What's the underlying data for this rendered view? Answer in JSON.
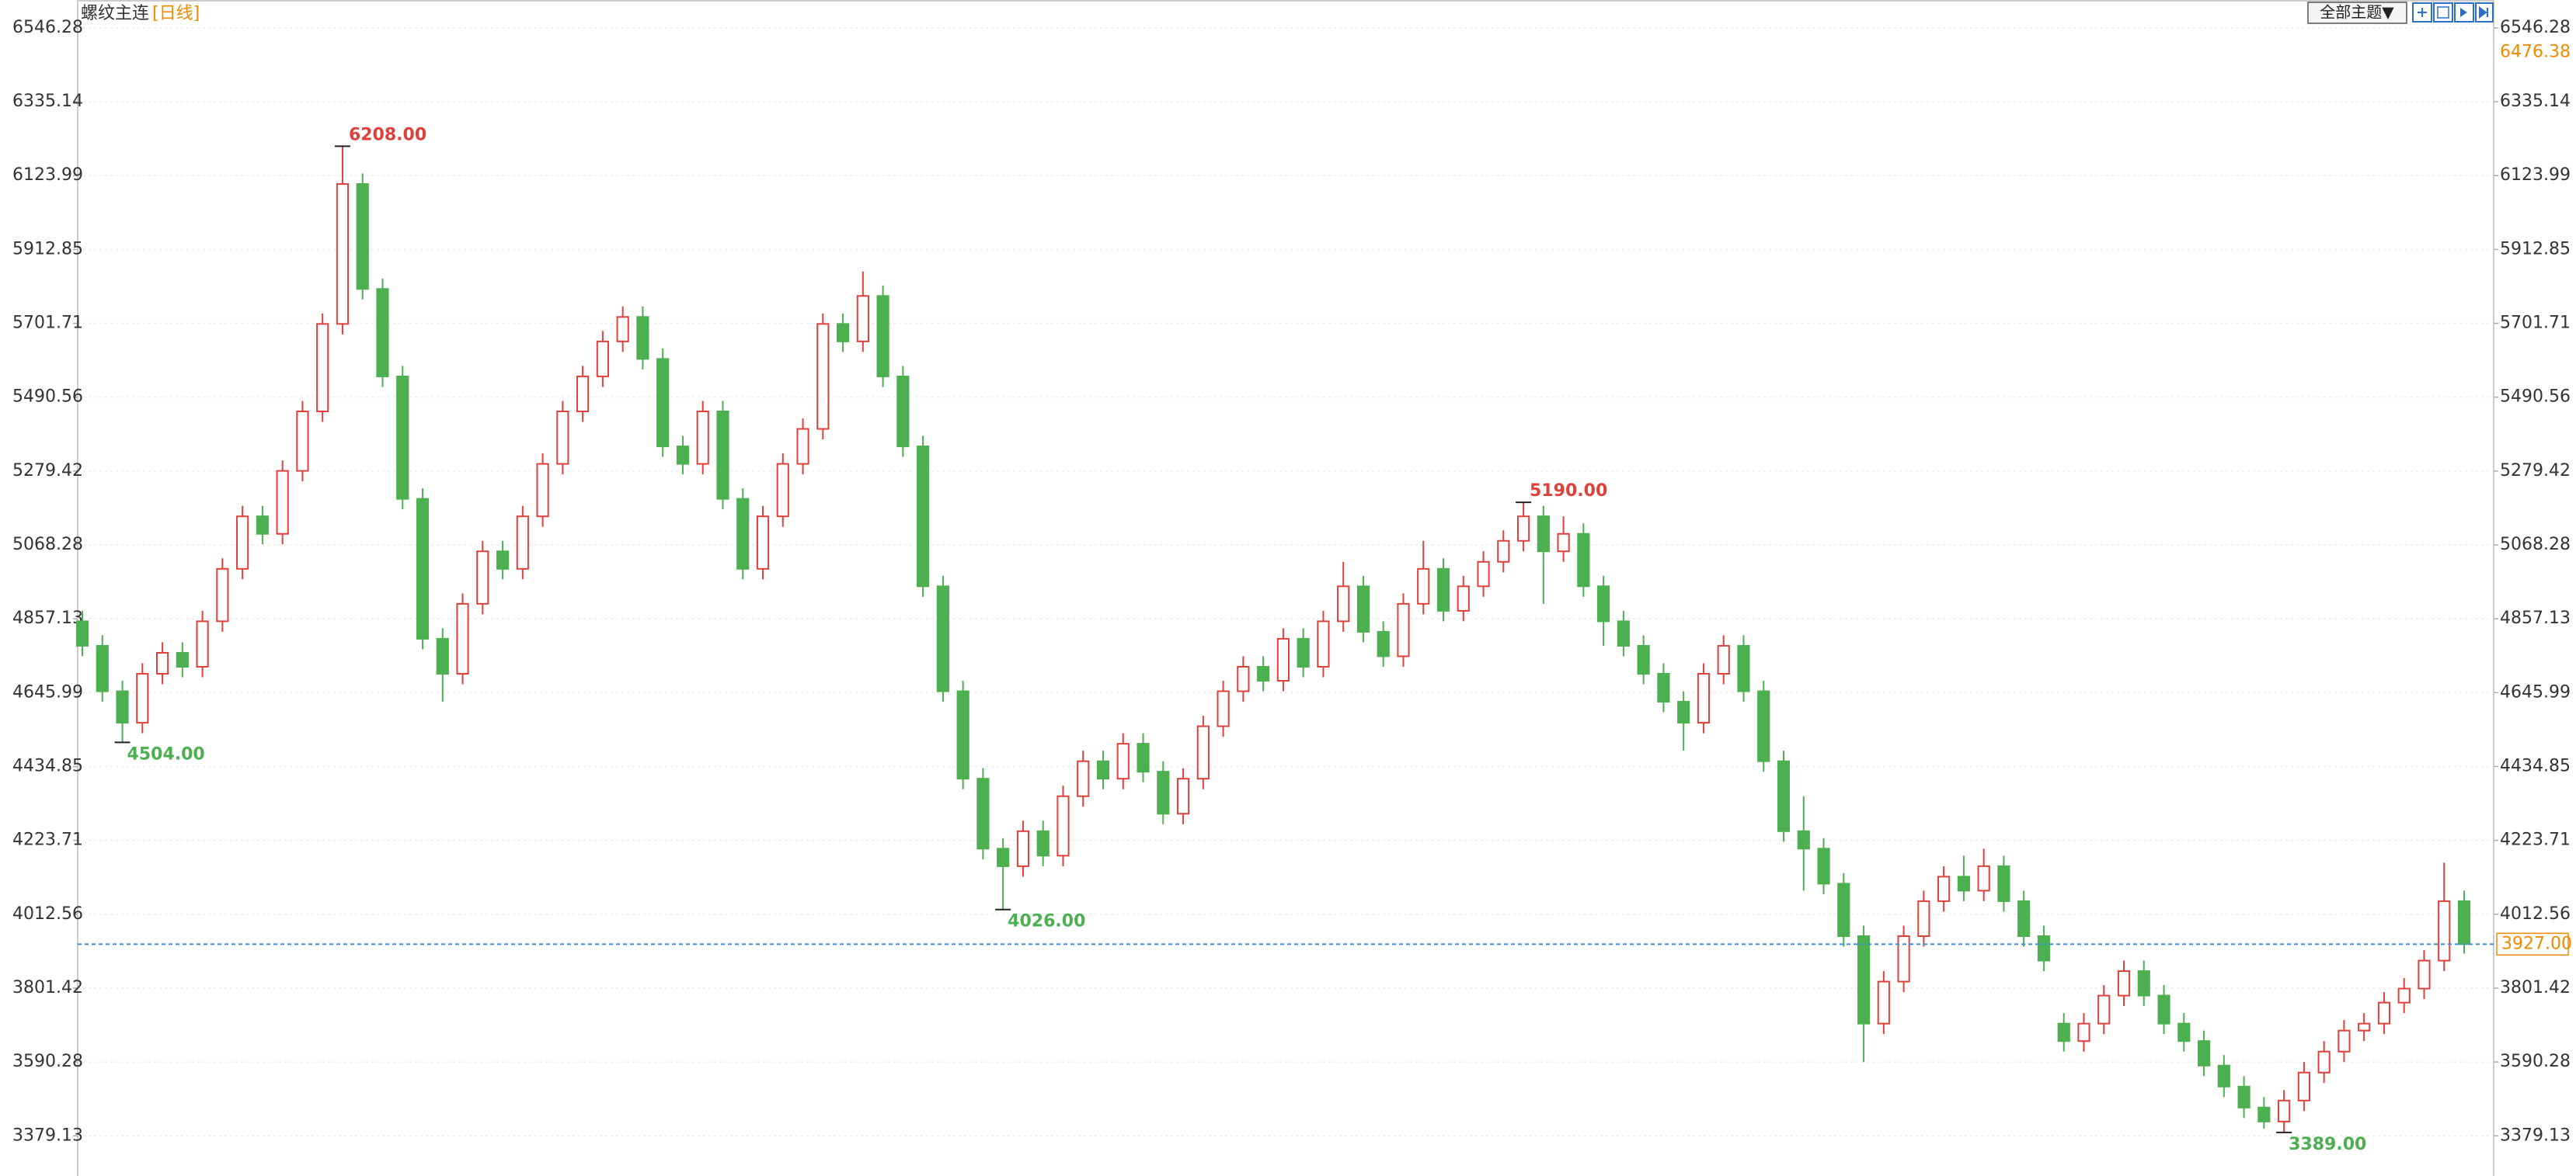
{
  "toolbar": {
    "theme_button": "全部主题▼"
  },
  "chart_data": {
    "type": "candlestick",
    "title": "螺纹主连",
    "period": "[日线]",
    "up_color": "#e0403a",
    "down_color": "#4caf50",
    "ylim": [
      3271,
      6626
    ],
    "yticks": [
      6546.28,
      6335.14,
      6123.99,
      5912.85,
      5701.71,
      5490.56,
      5279.42,
      5068.28,
      4857.13,
      4645.99,
      4434.85,
      4223.71,
      4012.56,
      3801.42,
      3590.28,
      3379.13
    ],
    "grid": true,
    "open": [
      4850,
      4780,
      4650,
      4560,
      4700,
      4760,
      4720,
      4850,
      5000,
      5150,
      5100,
      5280,
      5450,
      5700,
      6100,
      5800,
      5550,
      5200,
      4800,
      4700,
      4900,
      5050,
      5000,
      5150,
      5300,
      5450,
      5550,
      5650,
      5720,
      5600,
      5350,
      5300,
      5450,
      5200,
      5000,
      5150,
      5300,
      5400,
      5700,
      5650,
      5780,
      5550,
      5350,
      4950,
      4650,
      4400,
      4200,
      4150,
      4250,
      4180,
      4350,
      4450,
      4400,
      4500,
      4420,
      4300,
      4400,
      4550,
      4650,
      4720,
      4680,
      4800,
      4720,
      4850,
      4950,
      4820,
      4750,
      4900,
      5000,
      4880,
      4950,
      5020,
      5080,
      5150,
      5050,
      5100,
      4950,
      4850,
      4780,
      4700,
      4620,
      4560,
      4700,
      4780,
      4650,
      4450,
      4250,
      4200,
      4100,
      3950,
      3700,
      3820,
      3950,
      4050,
      4120,
      4080,
      4150,
      4050,
      3950,
      3700,
      3650,
      3700,
      3780,
      3850,
      3780,
      3700,
      3650,
      3580,
      3520,
      3460,
      3420,
      3480,
      3560,
      3620,
      3680,
      3700,
      3760,
      3800,
      3880,
      4050
    ],
    "high": [
      4880,
      4810,
      4680,
      4730,
      4790,
      4790,
      4880,
      5030,
      5180,
      5180,
      5310,
      5480,
      5730,
      6208,
      6130,
      5830,
      5580,
      5230,
      4830,
      4930,
      5080,
      5080,
      5180,
      5330,
      5480,
      5580,
      5680,
      5750,
      5750,
      5630,
      5380,
      5480,
      5480,
      5230,
      5180,
      5330,
      5430,
      5730,
      5730,
      5850,
      5810,
      5580,
      5380,
      4980,
      4680,
      4430,
      4230,
      4280,
      4280,
      4380,
      4480,
      4480,
      4530,
      4530,
      4450,
      4430,
      4580,
      4680,
      4750,
      4750,
      4830,
      4830,
      4880,
      5020,
      4980,
      4850,
      4930,
      5080,
      5030,
      4980,
      5050,
      5110,
      5190,
      5180,
      5150,
      5130,
      4980,
      4880,
      4810,
      4730,
      4650,
      4730,
      4810,
      4810,
      4680,
      4480,
      4350,
      4230,
      4130,
      3980,
      3850,
      3980,
      4080,
      4150,
      4180,
      4200,
      4180,
      4080,
      3980,
      3730,
      3730,
      3810,
      3880,
      3880,
      3810,
      3730,
      3680,
      3610,
      3550,
      3490,
      3510,
      3590,
      3650,
      3710,
      3730,
      3790,
      3830,
      3910,
      4160,
      4080
    ],
    "low": [
      4750,
      4620,
      4504,
      4530,
      4670,
      4690,
      4690,
      4820,
      4970,
      5070,
      5070,
      5250,
      5420,
      5670,
      5770,
      5520,
      5170,
      4770,
      4620,
      4670,
      4870,
      4970,
      4970,
      5120,
      5270,
      5420,
      5520,
      5620,
      5570,
      5320,
      5270,
      5270,
      5170,
      4970,
      4970,
      5120,
      5270,
      5370,
      5620,
      5620,
      5520,
      5320,
      4920,
      4620,
      4370,
      4170,
      4026,
      4120,
      4150,
      4150,
      4320,
      4370,
      4370,
      4390,
      4270,
      4270,
      4370,
      4520,
      4620,
      4650,
      4650,
      4690,
      4690,
      4820,
      4790,
      4720,
      4720,
      4870,
      4850,
      4850,
      4920,
      4990,
      5050,
      4900,
      5020,
      4920,
      4780,
      4750,
      4670,
      4590,
      4480,
      4530,
      4670,
      4620,
      4420,
      4220,
      4080,
      4070,
      3920,
      3590,
      3670,
      3790,
      3920,
      4020,
      4050,
      4050,
      4020,
      3920,
      3850,
      3620,
      3620,
      3670,
      3750,
      3750,
      3670,
      3620,
      3550,
      3490,
      3430,
      3400,
      3389,
      3450,
      3530,
      3590,
      3650,
      3670,
      3730,
      3770,
      3850,
      3900
    ],
    "close": [
      4780,
      4650,
      4560,
      4700,
      4760,
      4720,
      4850,
      5000,
      5150,
      5100,
      5280,
      5450,
      5700,
      6100,
      5800,
      5550,
      5200,
      4800,
      4700,
      4900,
      5050,
      5000,
      5150,
      5300,
      5450,
      5550,
      5650,
      5720,
      5600,
      5350,
      5300,
      5450,
      5200,
      5000,
      5150,
      5300,
      5400,
      5700,
      5650,
      5780,
      5550,
      5350,
      4950,
      4650,
      4400,
      4200,
      4150,
      4250,
      4180,
      4350,
      4450,
      4400,
      4500,
      4420,
      4300,
      4400,
      4550,
      4650,
      4720,
      4680,
      4800,
      4720,
      4850,
      4950,
      4820,
      4750,
      4900,
      5000,
      4880,
      4950,
      5020,
      5080,
      5150,
      5050,
      5100,
      4950,
      4850,
      4780,
      4700,
      4620,
      4560,
      4700,
      4780,
      4650,
      4450,
      4250,
      4200,
      4100,
      3950,
      3700,
      3820,
      3950,
      4050,
      4120,
      4080,
      4150,
      4050,
      3950,
      3880,
      3650,
      3700,
      3780,
      3850,
      3780,
      3700,
      3650,
      3580,
      3520,
      3460,
      3420,
      3480,
      3560,
      3620,
      3680,
      3700,
      3760,
      3800,
      3880,
      4050,
      3927
    ],
    "high_marks": [
      {
        "value": 6208,
        "label": "6208.00"
      },
      {
        "value": 5190,
        "label": "5190.00"
      }
    ],
    "low_marks": [
      {
        "value": 4504,
        "label": "4504.00"
      },
      {
        "value": 4026,
        "label": "4026.00"
      },
      {
        "value": 3389,
        "label": "3389.00"
      }
    ],
    "upper_value": 6476.38,
    "last_price": {
      "value": 3927,
      "label": "3927.00"
    }
  }
}
